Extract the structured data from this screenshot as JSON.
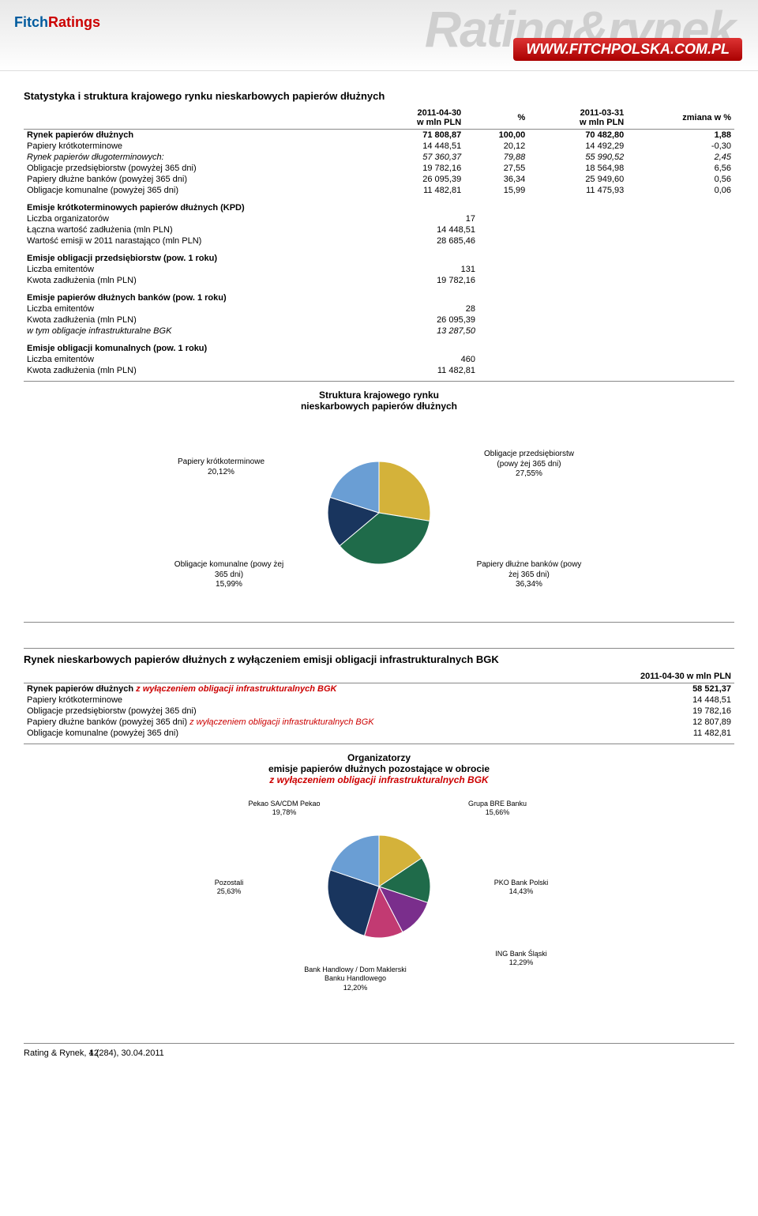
{
  "header": {
    "logo_fitch": "Fitch",
    "logo_ratings": "Ratings",
    "watermark": "Rating&rynek",
    "url": "WWW.FITCHPOLSKA.COM.PL"
  },
  "table1": {
    "title": "Statystyka i struktura krajowego rynku nieskarbowych papierów dłużnych",
    "cols": [
      "",
      "2011-04-30\nw mln PLN",
      "%",
      "2011-03-31\nw mln PLN",
      "zmiana w %"
    ],
    "rows": [
      {
        "label": "Rynek papierów dłużnych",
        "c1": "71 808,87",
        "c2": "100,00",
        "c3": "70 482,80",
        "c4": "1,88",
        "bold": true
      },
      {
        "label": "Papiery krótkoterminowe",
        "c1": "14 448,51",
        "c2": "20,12",
        "c3": "14 492,29",
        "c4": "-0,30"
      },
      {
        "label": "Rynek papierów długoterminowych:",
        "c1": "57 360,37",
        "c2": "79,88",
        "c3": "55 990,52",
        "c4": "2,45",
        "italic": true
      },
      {
        "label": "Obligacje przedsiębiorstw (powyżej 365 dni)",
        "c1": "19 782,16",
        "c2": "27,55",
        "c3": "18 564,98",
        "c4": "6,56"
      },
      {
        "label": "Papiery dłużne banków (powyżej 365 dni)",
        "c1": "26 095,39",
        "c2": "36,34",
        "c3": "25 949,60",
        "c4": "0,56"
      },
      {
        "label": "Obligacje komunalne (powyżej 365 dni)",
        "c1": "11 482,81",
        "c2": "15,99",
        "c3": "11 475,93",
        "c4": "0,06"
      }
    ]
  },
  "blocks": [
    {
      "title": "Emisje krótkoterminowych papierów dłużnych (KPD)",
      "rows": [
        {
          "label": "Liczba organizatorów",
          "val": "17"
        },
        {
          "label": "Łączna wartość zadłużenia (mln PLN)",
          "val": "14 448,51"
        },
        {
          "label": "Wartość emisji w 2011 narastająco (mln PLN)",
          "val": "28 685,46"
        }
      ]
    },
    {
      "title": "Emisje obligacji przedsiębiorstw (pow. 1 roku)",
      "rows": [
        {
          "label": "Liczba emitentów",
          "val": "131"
        },
        {
          "label": "Kwota zadłużenia (mln PLN)",
          "val": "19 782,16"
        }
      ]
    },
    {
      "title": "Emisje papierów dłużnych banków (pow. 1 roku)",
      "rows": [
        {
          "label": "Liczba emitentów",
          "val": "28"
        },
        {
          "label": "Kwota zadłużenia (mln PLN)",
          "val": "26 095,39"
        },
        {
          "label": "w tym obligacje infrastrukturalne BGK",
          "val": "13 287,50",
          "italic": true
        }
      ]
    },
    {
      "title": "Emisje obligacji komunalnych (pow. 1 roku)",
      "rows": [
        {
          "label": "Liczba emitentów",
          "val": "460"
        },
        {
          "label": "Kwota zadłużenia (mln PLN)",
          "val": "11 482,81"
        }
      ]
    }
  ],
  "pie1": {
    "title": "Struktura krajowego rynku\nnieskarbowych papierów dłużnych",
    "slices": [
      {
        "label": "Obligacje przedsiębiorstw (powy żej 365 dni)",
        "pct_label": "27,55%",
        "value": 27.55,
        "color": "#d4b23a"
      },
      {
        "label": "Papiery dłużne banków (powy żej 365 dni)",
        "pct_label": "36,34%",
        "value": 36.34,
        "color": "#1f6b4a"
      },
      {
        "label": "Obligacje komunalne (powy żej 365 dni)",
        "pct_label": "15,99%",
        "value": 15.99,
        "color": "#19355e"
      },
      {
        "label": "Papiery krótkoterminowe",
        "pct_label": "20,12%",
        "value": 20.12,
        "color": "#6a9ed4"
      }
    ],
    "title_fontsize": 12,
    "title_fontweight": "bold",
    "label_fontsize": 10,
    "radius": 65,
    "background_color": "#ffffff"
  },
  "table2": {
    "title": "Rynek nieskarbowych papierów dłużnych z wyłączeniem emisji obligacji infrastrukturalnych BGK",
    "col_header": "2011-04-30 w mln PLN",
    "rows": [
      {
        "label": "Rynek papierów dłużnych",
        "suffix": " z wyłączeniem obligacji infrastrukturalnych BGK",
        "val": "58 521,37",
        "bold": true,
        "suffix_italic_red": true
      },
      {
        "label": "Papiery krótkoterminowe",
        "val": "14 448,51"
      },
      {
        "label": "Obligacje przedsiębiorstw (powyżej 365 dni)",
        "val": "19 782,16"
      },
      {
        "label": "Papiery dłużne banków (powyżej 365 dni)",
        "suffix": " z wyłączeniem obligacji infrastrukturalnych BGK",
        "val": "12 807,89",
        "suffix_italic_red": true
      },
      {
        "label": "Obligacje komunalne (powyżej 365 dni)",
        "val": "11 482,81"
      }
    ]
  },
  "pie2": {
    "title_line1": "Organizatorzy",
    "title_line2": "emisje papierów dłużnych pozostające w obrocie",
    "title_line3": "z wyłączeniem obligacji infrastrukturalnych BGK",
    "slices": [
      {
        "label": "Grupa BRE Banku",
        "pct_label": "15,66%",
        "value": 15.66,
        "color": "#d4b23a"
      },
      {
        "label": "PKO Bank Polski",
        "pct_label": "14,43%",
        "value": 14.43,
        "color": "#1f6b4a"
      },
      {
        "label": "ING Bank Śląski",
        "pct_label": "12,29%",
        "value": 12.29,
        "color": "#7a2e8c"
      },
      {
        "label": "Bank Handlowy / Dom Maklerski Banku Handlowego",
        "pct_label": "12,20%",
        "value": 12.2,
        "color": "#c23a72"
      },
      {
        "label": "Pozostali",
        "pct_label": "25,63%",
        "value": 25.63,
        "color": "#19355e"
      },
      {
        "label": "Pekao SA/CDM Pekao",
        "pct_label": "19,78%",
        "value": 19.78,
        "color": "#6a9ed4"
      }
    ],
    "radius": 65,
    "label_fontsize": 9
  },
  "footer": {
    "left": "Rating & Rynek, 4 (284), 30.04.2011",
    "page": "12"
  }
}
